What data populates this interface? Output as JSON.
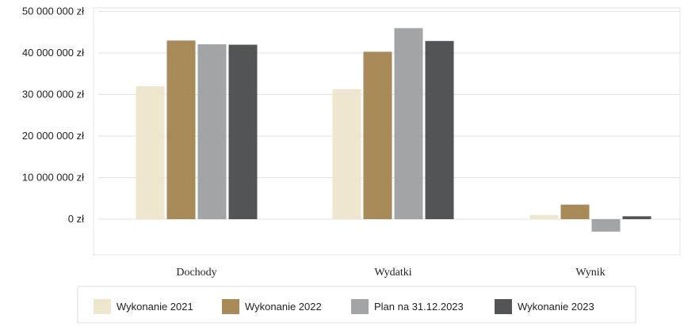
{
  "chart_data": {
    "type": "bar",
    "categories": [
      "Dochody",
      "Wydatki",
      "Wynik"
    ],
    "series": [
      {
        "name": "Wykonanie 2021",
        "color": "#efe6cf",
        "values": [
          32000000,
          31300000,
          1000000
        ]
      },
      {
        "name": "Wykonanie 2022",
        "color": "#a88a58",
        "values": [
          43000000,
          40300000,
          3500000
        ]
      },
      {
        "name": "Plan na 31.12.2023",
        "color": "#a3a4a6",
        "values": [
          42100000,
          46000000,
          -3000000
        ]
      },
      {
        "name": "Wykonanie 2023",
        "color": "#535455",
        "values": [
          42000000,
          42900000,
          700000
        ]
      }
    ],
    "yticks": [
      {
        "value": 0,
        "label": "0 zł"
      },
      {
        "value": 10000000,
        "label": "10 000 000 zł"
      },
      {
        "value": 20000000,
        "label": "20 000 000 zł"
      },
      {
        "value": 30000000,
        "label": "30 000 000 zł"
      },
      {
        "value": 40000000,
        "label": "40 000 000 zł"
      },
      {
        "value": 50000000,
        "label": "50 000 000 zł"
      }
    ],
    "ylim": [
      -8000000,
      50000000
    ],
    "grid": true,
    "legend_position": "bottom"
  }
}
